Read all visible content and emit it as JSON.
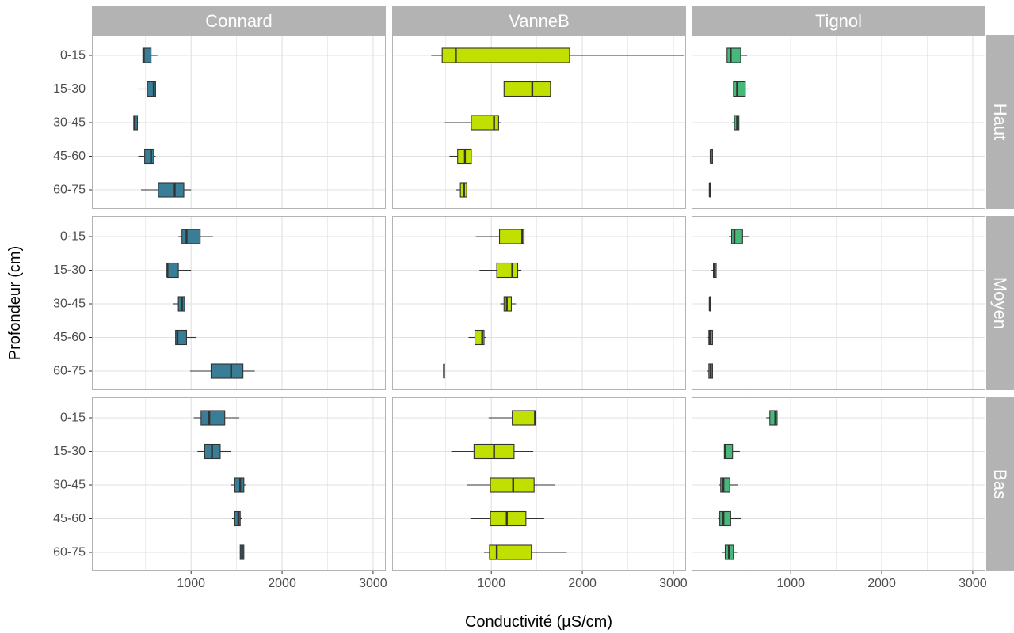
{
  "chart_data": {
    "type": "boxplot",
    "orientation": "horizontal",
    "facet_columns": [
      "Connard",
      "VanneB",
      "Tignol"
    ],
    "facet_rows": [
      "Haut",
      "Moyen",
      "Bas"
    ],
    "categories": [
      "0-15",
      "15-30",
      "30-45",
      "45-60",
      "60-75"
    ],
    "xlabel": "Conductivité (µS/cm)",
    "ylabel": "Profondeur (cm)",
    "xlim": [
      -90,
      3140
    ],
    "x_ticks": [
      1000,
      2000,
      3000
    ],
    "x_tick_labels": [
      "1000",
      "2000",
      "3000"
    ],
    "grid": true,
    "legend": "none",
    "colors": {
      "Connard": "#3a7d96",
      "VanneB": "#c1e000",
      "Tignol": "#45b87a",
      "strip_bg": "#b3b3b3",
      "grid": "#e0e0e0",
      "panel_border": "#b3b3b3",
      "box_outline": "#333333"
    },
    "facets": [
      {
        "col": "Connard",
        "row": "Haut",
        "boxes": [
          {
            "depth": "0-15",
            "min": 470,
            "q1": 470,
            "median": 480,
            "q3": 560,
            "max": 630
          },
          {
            "depth": "15-30",
            "min": 410,
            "q1": 520,
            "median": 590,
            "q3": 610,
            "max": 610
          },
          {
            "depth": "30-45",
            "min": 370,
            "q1": 370,
            "median": 380,
            "q3": 410,
            "max": 420
          },
          {
            "depth": "45-60",
            "min": 420,
            "q1": 490,
            "median": 560,
            "q3": 590,
            "max": 610
          },
          {
            "depth": "60-75",
            "min": 450,
            "q1": 640,
            "median": 820,
            "q3": 920,
            "max": 1000
          }
        ]
      },
      {
        "col": "VanneB",
        "row": "Haut",
        "boxes": [
          {
            "depth": "0-15",
            "min": 340,
            "q1": 460,
            "median": 610,
            "q3": 1860,
            "max": 3120
          },
          {
            "depth": "15-30",
            "min": 820,
            "q1": 1140,
            "median": 1450,
            "q3": 1650,
            "max": 1830
          },
          {
            "depth": "30-45",
            "min": 490,
            "q1": 780,
            "median": 1030,
            "q3": 1080,
            "max": 1100
          },
          {
            "depth": "45-60",
            "min": 540,
            "q1": 630,
            "median": 710,
            "q3": 780,
            "max": 780
          },
          {
            "depth": "60-75",
            "min": 610,
            "q1": 660,
            "median": 700,
            "q3": 730,
            "max": 730
          }
        ]
      },
      {
        "col": "Tignol",
        "row": "Haut",
        "boxes": [
          {
            "depth": "0-15",
            "min": 300,
            "q1": 300,
            "median": 340,
            "q3": 450,
            "max": 520
          },
          {
            "depth": "15-30",
            "min": 370,
            "q1": 370,
            "median": 410,
            "q3": 500,
            "max": 550
          },
          {
            "depth": "30-45",
            "min": 360,
            "q1": 380,
            "median": 410,
            "q3": 430,
            "max": 430
          },
          {
            "depth": "45-60",
            "min": 120,
            "q1": 120,
            "median": 120,
            "q3": 140,
            "max": 140
          },
          {
            "depth": "60-75",
            "min": 110,
            "q1": 110,
            "median": 110,
            "q3": 110,
            "max": 110
          }
        ]
      },
      {
        "col": "Connard",
        "row": "Moyen",
        "boxes": [
          {
            "depth": "0-15",
            "min": 860,
            "q1": 900,
            "median": 950,
            "q3": 1100,
            "max": 1240
          },
          {
            "depth": "15-30",
            "min": 740,
            "q1": 740,
            "median": 740,
            "q3": 860,
            "max": 1000
          },
          {
            "depth": "30-45",
            "min": 800,
            "q1": 860,
            "median": 900,
            "q3": 930,
            "max": 930
          },
          {
            "depth": "45-60",
            "min": 830,
            "q1": 830,
            "median": 850,
            "q3": 950,
            "max": 1060
          },
          {
            "depth": "60-75",
            "min": 990,
            "q1": 1220,
            "median": 1440,
            "q3": 1570,
            "max": 1700
          }
        ]
      },
      {
        "col": "VanneB",
        "row": "Moyen",
        "boxes": [
          {
            "depth": "0-15",
            "min": 830,
            "q1": 1090,
            "median": 1340,
            "q3": 1360,
            "max": 1360
          },
          {
            "depth": "15-30",
            "min": 870,
            "q1": 1060,
            "median": 1230,
            "q3": 1290,
            "max": 1330
          },
          {
            "depth": "30-45",
            "min": 1100,
            "q1": 1140,
            "median": 1170,
            "q3": 1220,
            "max": 1270
          },
          {
            "depth": "45-60",
            "min": 750,
            "q1": 820,
            "median": 900,
            "q3": 920,
            "max": 940
          },
          {
            "depth": "60-75",
            "min": 480,
            "q1": 480,
            "median": 480,
            "q3": 480,
            "max": 480
          }
        ]
      },
      {
        "col": "Tignol",
        "row": "Moyen",
        "boxes": [
          {
            "depth": "0-15",
            "min": 320,
            "q1": 350,
            "median": 380,
            "q3": 470,
            "max": 540
          },
          {
            "depth": "15-30",
            "min": 130,
            "q1": 150,
            "median": 160,
            "q3": 180,
            "max": 180
          },
          {
            "depth": "30-45",
            "min": 110,
            "q1": 110,
            "median": 110,
            "q3": 110,
            "max": 110
          },
          {
            "depth": "45-60",
            "min": 90,
            "q1": 100,
            "median": 110,
            "q3": 140,
            "max": 140
          },
          {
            "depth": "60-75",
            "min": 80,
            "q1": 100,
            "median": 120,
            "q3": 140,
            "max": 140
          }
        ]
      },
      {
        "col": "Connard",
        "row": "Bas",
        "boxes": [
          {
            "depth": "0-15",
            "min": 1030,
            "q1": 1110,
            "median": 1200,
            "q3": 1370,
            "max": 1530
          },
          {
            "depth": "15-30",
            "min": 1070,
            "q1": 1150,
            "median": 1230,
            "q3": 1320,
            "max": 1440
          },
          {
            "depth": "30-45",
            "min": 1440,
            "q1": 1480,
            "median": 1540,
            "q3": 1580,
            "max": 1600
          },
          {
            "depth": "45-60",
            "min": 1450,
            "q1": 1480,
            "median": 1520,
            "q3": 1540,
            "max": 1560
          },
          {
            "depth": "60-75",
            "min": 1540,
            "q1": 1540,
            "median": 1560,
            "q3": 1580,
            "max": 1580
          }
        ]
      },
      {
        "col": "VanneB",
        "row": "Bas",
        "boxes": [
          {
            "depth": "0-15",
            "min": 970,
            "q1": 1230,
            "median": 1480,
            "q3": 1490,
            "max": 1490
          },
          {
            "depth": "15-30",
            "min": 560,
            "q1": 810,
            "median": 1030,
            "q3": 1250,
            "max": 1460
          },
          {
            "depth": "30-45",
            "min": 730,
            "q1": 990,
            "median": 1240,
            "q3": 1470,
            "max": 1700
          },
          {
            "depth": "45-60",
            "min": 770,
            "q1": 990,
            "median": 1170,
            "q3": 1380,
            "max": 1580
          },
          {
            "depth": "60-75",
            "min": 920,
            "q1": 980,
            "median": 1060,
            "q3": 1440,
            "max": 1830
          }
        ]
      },
      {
        "col": "Tignol",
        "row": "Bas",
        "boxes": [
          {
            "depth": "0-15",
            "min": 730,
            "q1": 770,
            "median": 830,
            "q3": 850,
            "max": 850
          },
          {
            "depth": "15-30",
            "min": 270,
            "q1": 270,
            "median": 280,
            "q3": 360,
            "max": 440
          },
          {
            "depth": "30-45",
            "min": 210,
            "q1": 230,
            "median": 260,
            "q3": 330,
            "max": 420
          },
          {
            "depth": "45-60",
            "min": 200,
            "q1": 220,
            "median": 260,
            "q3": 340,
            "max": 450
          },
          {
            "depth": "60-75",
            "min": 240,
            "q1": 280,
            "median": 320,
            "q3": 370,
            "max": 410
          }
        ]
      }
    ]
  }
}
